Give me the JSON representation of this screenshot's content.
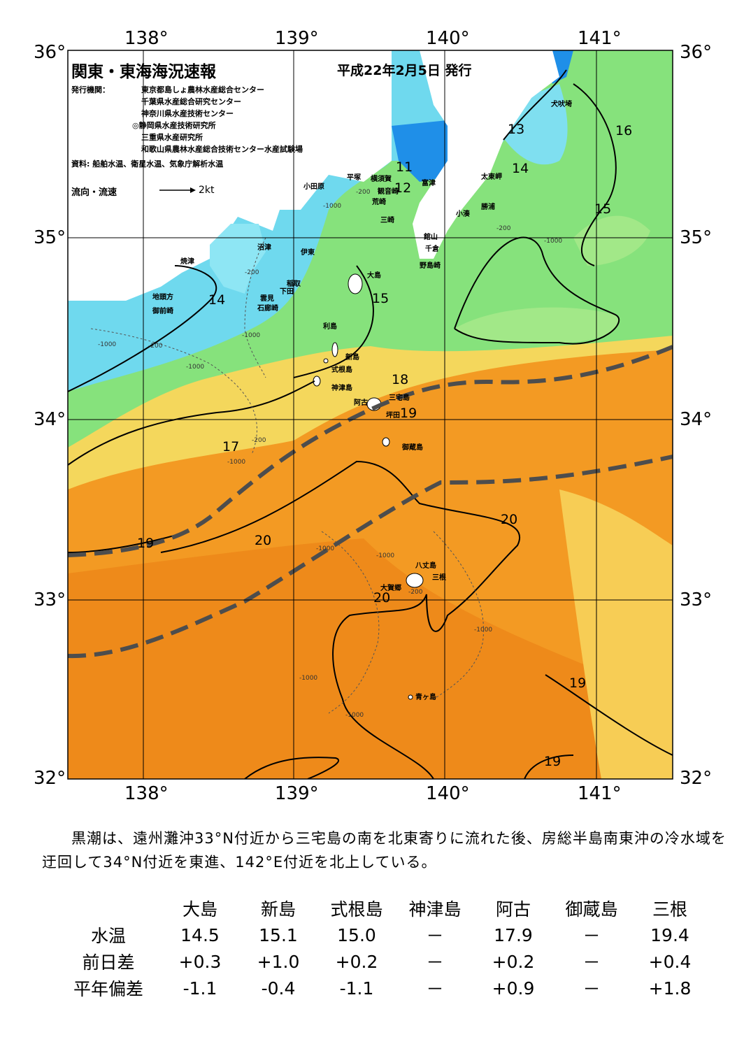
{
  "header": {
    "title": "関東・東海海況速報",
    "issue_date": "平成22年2月5日 発行",
    "publisher_label": "発行機関：",
    "publishers": [
      "東京都島しょ農林水産総合センター",
      "千葉県水産総合研究センター",
      "神奈川県水産技術センター",
      "◎静岡県水産技術研究所",
      "三重県水産研究所",
      "和歌山県農林水産総合技術センター水産試験場"
    ],
    "source": "資料: 船舶水温、衛星水温、気象庁解析水温",
    "flow_label": "流向・流速",
    "flow_scale": "2kt"
  },
  "map": {
    "lon_ticks": [
      "138°",
      "139°",
      "140°",
      "141°"
    ],
    "lat_ticks": [
      "36°",
      "35°",
      "34°",
      "33°",
      "32°"
    ],
    "isotherm_labels": [
      "13",
      "16",
      "11",
      "12",
      "14",
      "15",
      "14",
      "15",
      "18",
      "19",
      "17",
      "20",
      "19",
      "20",
      "20",
      "19",
      "19"
    ],
    "depth_labels": [
      "-200",
      "-1000"
    ],
    "places": [
      "犬吠埼",
      "太東岬",
      "勝浦",
      "小湊",
      "館山",
      "千倉",
      "野島崎",
      "富津",
      "横須賀",
      "観音崎",
      "荒崎",
      "三崎",
      "平塚",
      "小田原",
      "大島",
      "沼津",
      "伊東",
      "焼津",
      "稲取",
      "下田",
      "雲見",
      "石廊崎",
      "地頭方",
      "御前崎",
      "利島",
      "新島",
      "式根島",
      "神津島",
      "阿古",
      "三宅島",
      "坪田",
      "御蔵島",
      "八丈島",
      "三根",
      "大賀郷",
      "青ヶ島"
    ],
    "colors": {
      "cold": "#1f8fe8",
      "cool": "#66d6f2",
      "mid": "#7fe07a",
      "warm": "#f2dc59",
      "kuroshio": "#f39a23",
      "kuroshio_axis": "#4d4d4d"
    }
  },
  "description": "黒潮は、遠州灘沖33°N付近から三宅島の南を北東寄りに流れた後、房総半島南東沖の冷水域を迂回して34°N付近を東進、142°E付近を北上している。",
  "stats": {
    "columns": [
      "大島",
      "新島",
      "式根島",
      "神津島",
      "阿古",
      "御蔵島",
      "三根"
    ],
    "rows": [
      {
        "label": "水温",
        "values": [
          "14.5",
          "15.1",
          "15.0",
          "－",
          "17.9",
          "－",
          "19.4"
        ]
      },
      {
        "label": "前日差",
        "values": [
          "+0.3",
          "+1.0",
          "+0.2",
          "－",
          "+0.2",
          "－",
          "+0.4"
        ]
      },
      {
        "label": "平年偏差",
        "values": [
          "-1.1",
          "-0.4",
          "-1.1",
          "－",
          "+0.9",
          "－",
          "+1.8"
        ]
      }
    ]
  }
}
